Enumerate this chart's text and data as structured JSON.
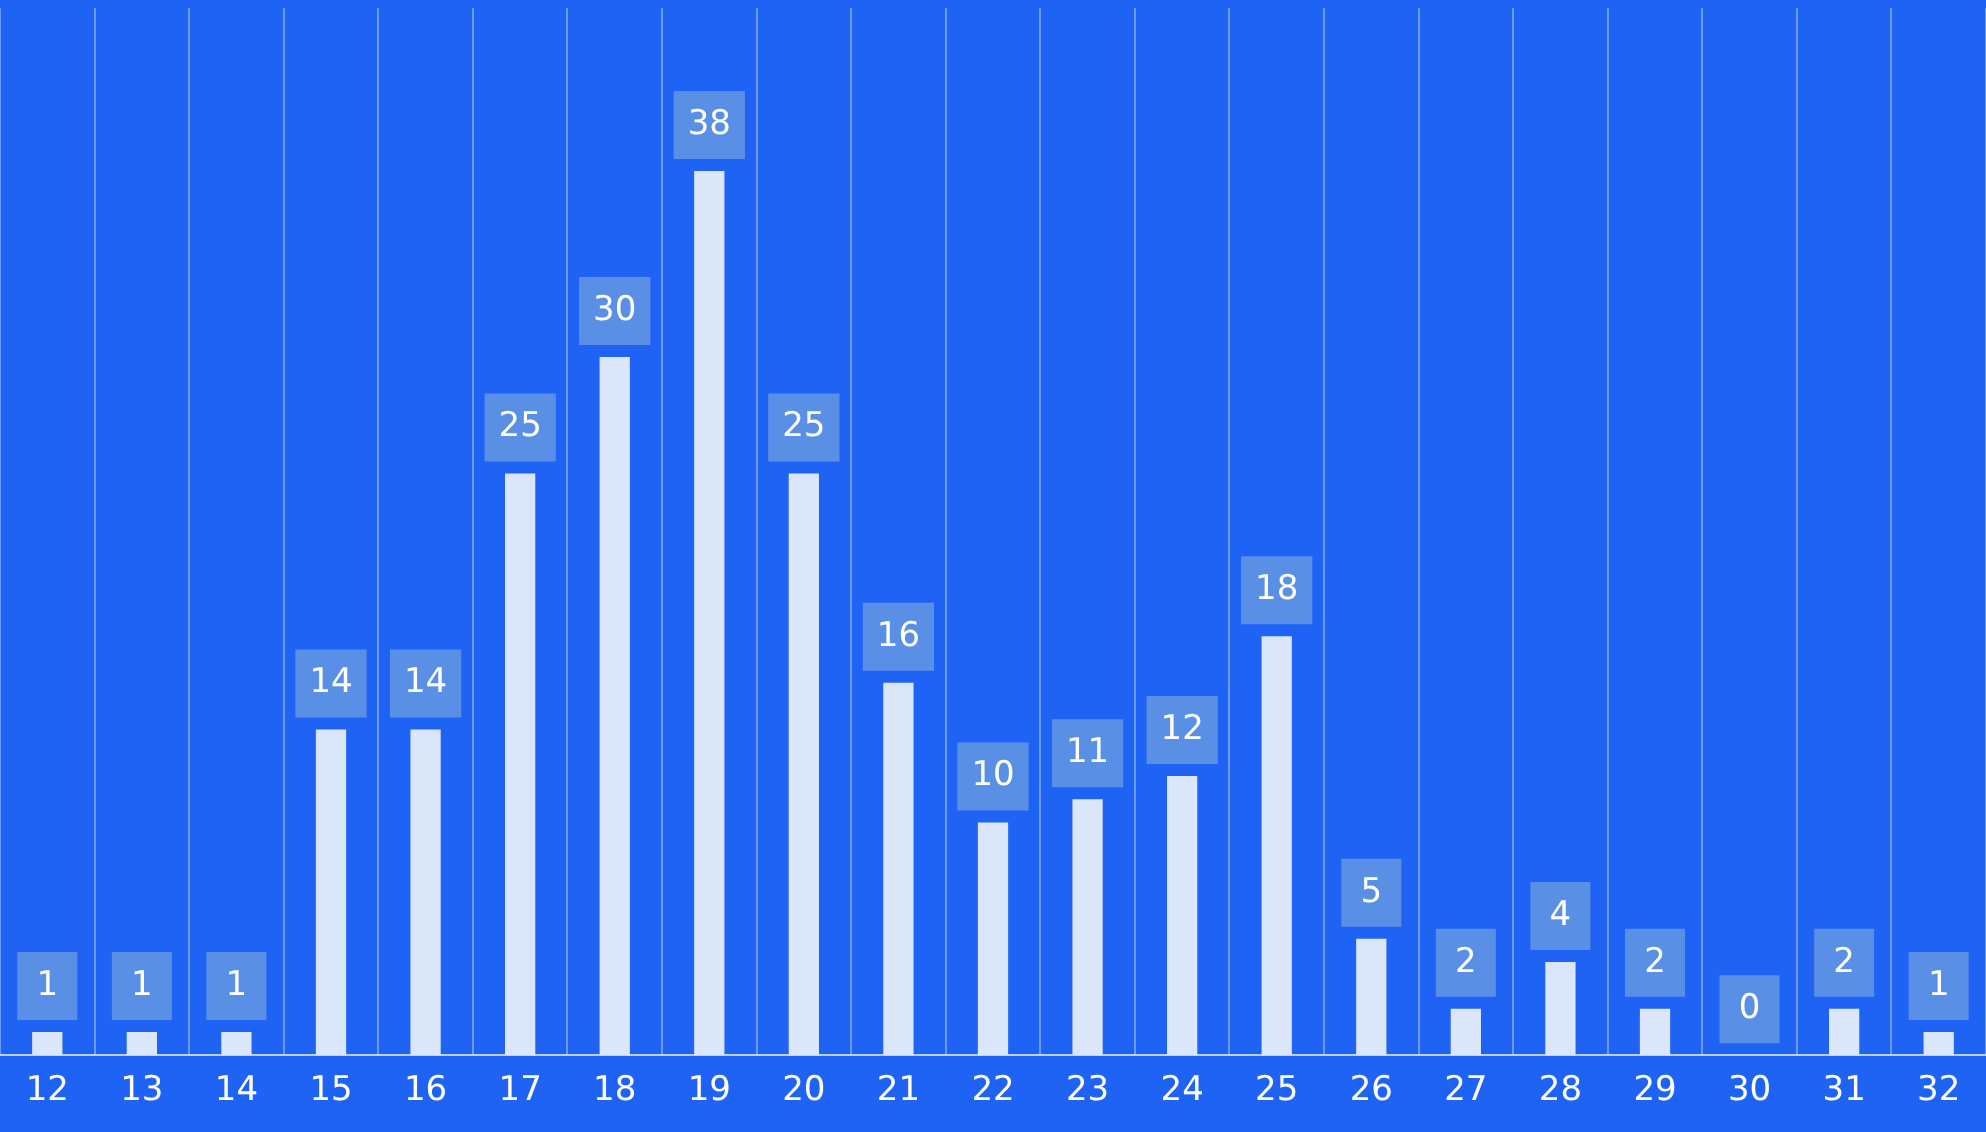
{
  "chart_data": {
    "type": "bar",
    "categories": [
      "12",
      "13",
      "14",
      "15",
      "16",
      "17",
      "18",
      "19",
      "20",
      "21",
      "22",
      "23",
      "24",
      "25",
      "26",
      "27",
      "28",
      "29",
      "30",
      "31",
      "32"
    ],
    "values": [
      1,
      1,
      1,
      14,
      14,
      25,
      30,
      38,
      25,
      16,
      10,
      11,
      12,
      18,
      5,
      2,
      4,
      2,
      0,
      2,
      1
    ],
    "color": "#dce6fb",
    "data_labels": true,
    "grid": "x"
  }
}
